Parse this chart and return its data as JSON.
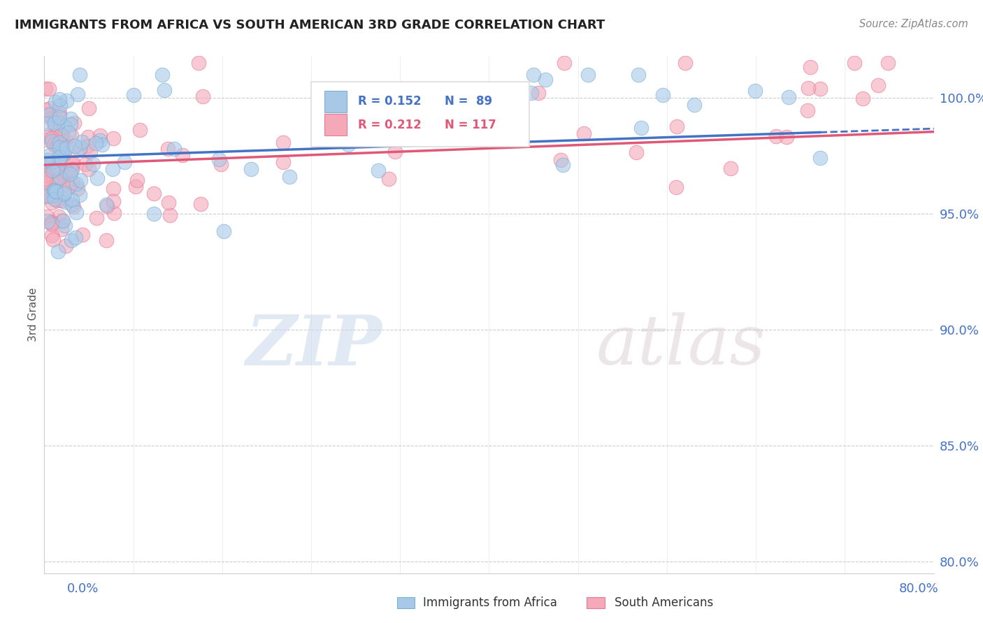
{
  "title": "IMMIGRANTS FROM AFRICA VS SOUTH AMERICAN 3RD GRADE CORRELATION CHART",
  "source": "Source: ZipAtlas.com",
  "ylabel": "3rd Grade",
  "xlim": [
    0.0,
    80.0
  ],
  "ylim": [
    79.5,
    101.8
  ],
  "ytick_labels": [
    "80.0%",
    "85.0%",
    "90.0%",
    "95.0%",
    "100.0%"
  ],
  "ytick_values": [
    80.0,
    85.0,
    90.0,
    95.0,
    100.0
  ],
  "series_blue": {
    "label": "Immigrants from Africa",
    "R": 0.152,
    "N": 89,
    "color": "#a8c8e8",
    "edge_color": "#7bafd4"
  },
  "series_pink": {
    "label": "South Americans",
    "R": 0.212,
    "N": 117,
    "color": "#f4a8b8",
    "edge_color": "#e87898"
  },
  "watermark_zip": "ZIP",
  "watermark_atlas": "atlas",
  "bg_color": "#ffffff",
  "grid_color": "#cccccc",
  "title_color": "#222222",
  "axis_label_color": "#4472c4",
  "trend_blue_color": "#4472c4",
  "trend_pink_color": "#e05878",
  "legend_R_blue": "R = 0.152",
  "legend_N_blue": "N =  89",
  "legend_R_pink": "R = 0.212",
  "legend_N_pink": "N = 117"
}
